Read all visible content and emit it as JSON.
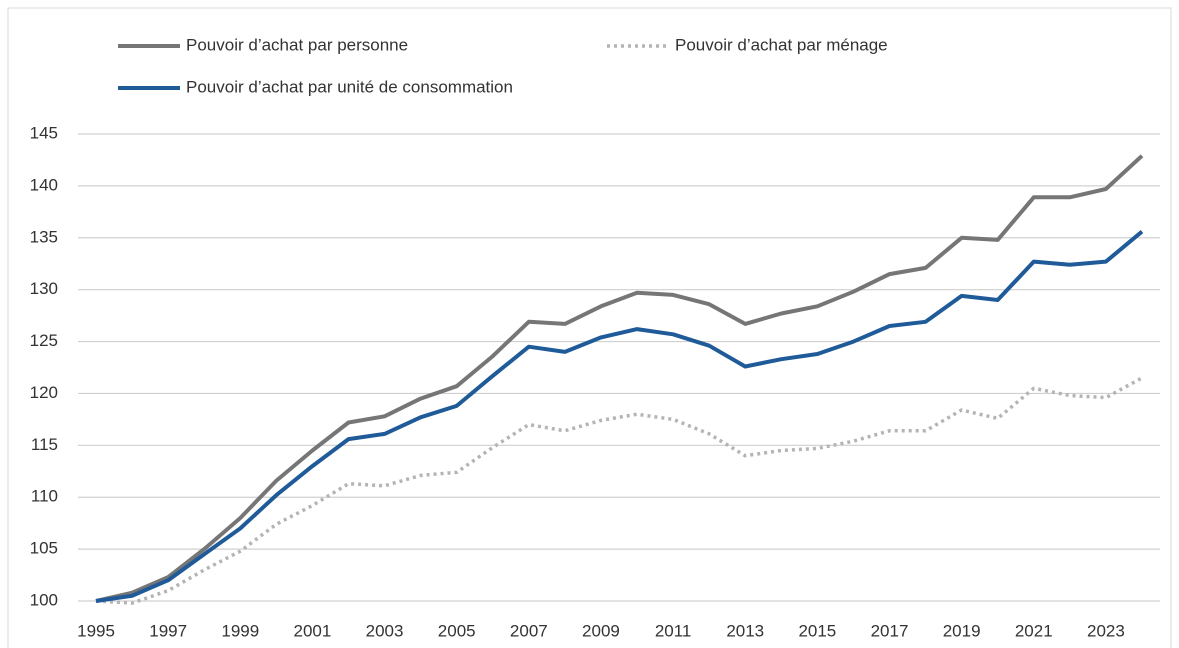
{
  "chart_data": {
    "type": "line",
    "categories": [
      "1995",
      null,
      "1997",
      null,
      "1999",
      null,
      "2001",
      null,
      "2003",
      null,
      "2005",
      null,
      "2007",
      null,
      "2009",
      null,
      "2011",
      null,
      "2013",
      null,
      "2015",
      null,
      "2017",
      null,
      "2019",
      null,
      "2021",
      null,
      "2023",
      null
    ],
    "series": [
      {
        "name": "Pouvoir d’achat par personne",
        "color": "#767676",
        "style": "solid",
        "values": [
          100,
          100.8,
          102.3,
          105,
          108,
          111.6,
          114.5,
          117.2,
          117.8,
          119.5,
          120.7,
          123.6,
          126.9,
          126.7,
          128.4,
          129.7,
          129.5,
          128.6,
          126.7,
          127.7,
          128.4,
          129.8,
          131.5,
          132.1,
          135.0,
          134.8,
          138.9,
          138.9,
          139.7,
          142.9
        ]
      },
      {
        "name": "Pouvoir d’achat par ménage",
        "color": "#b4b4b4",
        "style": "dotted",
        "values": [
          100,
          99.8,
          101,
          103,
          104.8,
          107.4,
          109.2,
          111.3,
          111.1,
          112.1,
          112.4,
          114.8,
          117,
          116.4,
          117.4,
          118,
          117.5,
          116.1,
          114,
          114.5,
          114.7,
          115.4,
          116.4,
          116.4,
          118.4,
          117.6,
          120.5,
          119.8,
          119.6,
          121.5
        ]
      },
      {
        "name": "Pouvoir d’achat par unité de consommation",
        "color": "#1f5a99",
        "style": "solid",
        "values": [
          100,
          100.5,
          102,
          104.5,
          107,
          110.2,
          113,
          115.6,
          116.1,
          117.7,
          118.8,
          121.7,
          124.5,
          124,
          125.4,
          126.2,
          125.7,
          124.6,
          122.6,
          123.3,
          123.8,
          125,
          126.5,
          126.9,
          129.4,
          129,
          132.7,
          132.4,
          132.7,
          135.6
        ]
      }
    ],
    "ylim": [
      100,
      145
    ],
    "yticks": [
      100,
      105,
      110,
      115,
      120,
      125,
      130,
      135,
      140,
      145
    ],
    "grid": true
  }
}
